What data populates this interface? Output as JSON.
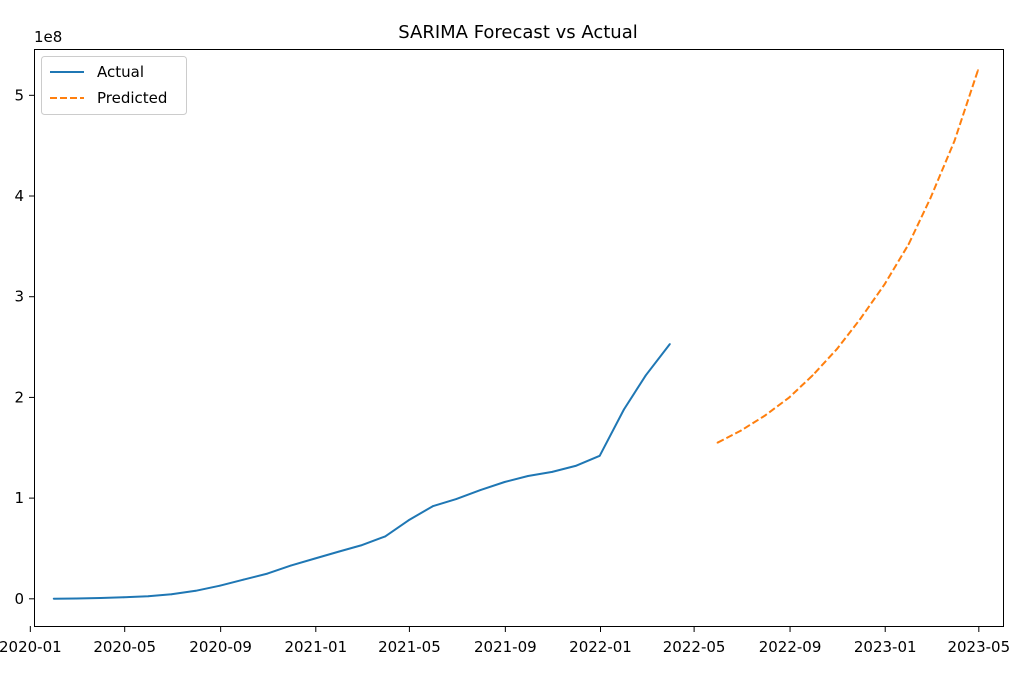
{
  "chart_data": {
    "type": "line",
    "title": "SARIMA Forecast vs Actual",
    "xlabel": "",
    "ylabel": "",
    "y_offset_label": "1e8",
    "y_scale": 100000000,
    "xlim": [
      "2020-01-07",
      "2023-06-01"
    ],
    "ylim": [
      -0.27,
      5.45
    ],
    "x_ticks": [
      {
        "date": "2020-01-01",
        "label": "2020-01"
      },
      {
        "date": "2020-05-01",
        "label": "2020-05"
      },
      {
        "date": "2020-09-01",
        "label": "2020-09"
      },
      {
        "date": "2021-01-01",
        "label": "2021-01"
      },
      {
        "date": "2021-05-01",
        "label": "2021-05"
      },
      {
        "date": "2021-09-01",
        "label": "2021-09"
      },
      {
        "date": "2022-01-01",
        "label": "2022-01"
      },
      {
        "date": "2022-05-01",
        "label": "2022-05"
      },
      {
        "date": "2022-09-01",
        "label": "2022-09"
      },
      {
        "date": "2023-01-01",
        "label": "2023-01"
      },
      {
        "date": "2023-05-01",
        "label": "2023-05"
      }
    ],
    "y_ticks": [
      {
        "value": 0,
        "label": "0"
      },
      {
        "value": 1,
        "label": "1"
      },
      {
        "value": 2,
        "label": "2"
      },
      {
        "value": 3,
        "label": "3"
      },
      {
        "value": 4,
        "label": "4"
      },
      {
        "value": 5,
        "label": "5"
      }
    ],
    "grid": false,
    "legend_position": "top-left",
    "series": [
      {
        "name": "Actual",
        "color": "#1f77b4",
        "style": "solid",
        "x": [
          "2020-01-31",
          "2020-02-29",
          "2020-03-31",
          "2020-04-30",
          "2020-05-31",
          "2020-06-30",
          "2020-07-31",
          "2020-08-31",
          "2020-09-30",
          "2020-10-31",
          "2020-11-30",
          "2020-12-31",
          "2021-01-31",
          "2021-02-28",
          "2021-03-31",
          "2021-04-30",
          "2021-05-31",
          "2021-06-30",
          "2021-07-31",
          "2021-08-31",
          "2021-09-30",
          "2021-10-31",
          "2021-11-30",
          "2021-12-31",
          "2022-01-31",
          "2022-02-28",
          "2022-03-31"
        ],
        "values": [
          0.001,
          0.003,
          0.008,
          0.015,
          0.025,
          0.045,
          0.08,
          0.13,
          0.19,
          0.25,
          0.33,
          0.4,
          0.47,
          0.53,
          0.62,
          0.78,
          0.92,
          0.99,
          1.08,
          1.16,
          1.22,
          1.26,
          1.32,
          1.42,
          1.88,
          2.22,
          2.53
        ]
      },
      {
        "name": "Predicted",
        "color": "#ff7f0e",
        "style": "dashed",
        "x": [
          "2022-05-31",
          "2022-06-30",
          "2022-07-31",
          "2022-08-31",
          "2022-09-30",
          "2022-10-31",
          "2022-11-30",
          "2022-12-31",
          "2023-01-31",
          "2023-02-28",
          "2023-03-31",
          "2023-04-30"
        ],
        "values": [
          1.55,
          1.67,
          1.82,
          2.0,
          2.22,
          2.48,
          2.78,
          3.12,
          3.52,
          3.98,
          4.55,
          5.25
        ]
      }
    ]
  }
}
